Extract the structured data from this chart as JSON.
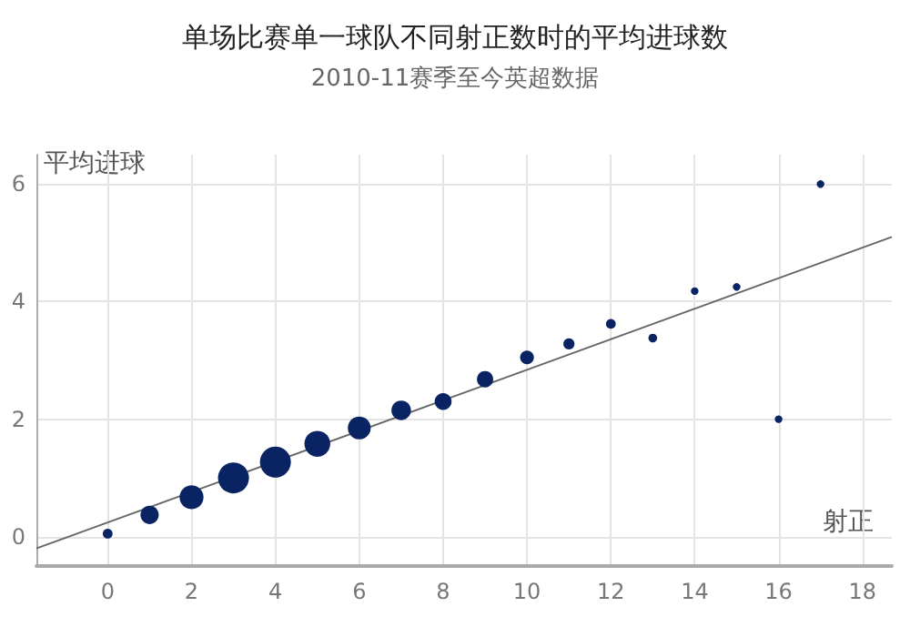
{
  "chart_data": {
    "type": "bubble",
    "title": "单场比赛单一球队不同射正数时的平均进球数",
    "subtitle": "2010-11赛季至今英超数据",
    "xlabel": "射正",
    "ylabel": "平均进球",
    "x": [
      0,
      1,
      2,
      3,
      4,
      5,
      6,
      7,
      8,
      9,
      10,
      11,
      12,
      13,
      14,
      15,
      16,
      17
    ],
    "series": [
      {
        "color": "#0a2463",
        "values": [
          0.05,
          0.37,
          0.67,
          1.0,
          1.27,
          1.58,
          1.85,
          2.15,
          2.3,
          2.68,
          3.05,
          3.28,
          3.62,
          3.38,
          4.18,
          4.25,
          2.0,
          6.0
        ],
        "sizes": [
          0.1,
          0.35,
          0.6,
          1,
          1,
          0.7,
          0.55,
          0.4,
          0.3,
          0.28,
          0.2,
          0.13,
          0.1,
          0.08,
          0.06,
          0.06,
          0.06,
          0.06
        ]
      },
      {
        "type": "line",
        "color": "#666666",
        "x": [
          -1.7,
          18.7
        ],
        "values": [
          -0.2,
          5.1
        ]
      }
    ],
    "xlim": [
      -1.7,
      18.7
    ],
    "xticks": [
      0,
      2,
      4,
      6,
      8,
      10,
      12,
      14,
      16,
      18
    ],
    "ylim": [
      -0.5,
      6.5
    ],
    "yticks": [
      0,
      2,
      4,
      6
    ],
    "grid": true
  }
}
